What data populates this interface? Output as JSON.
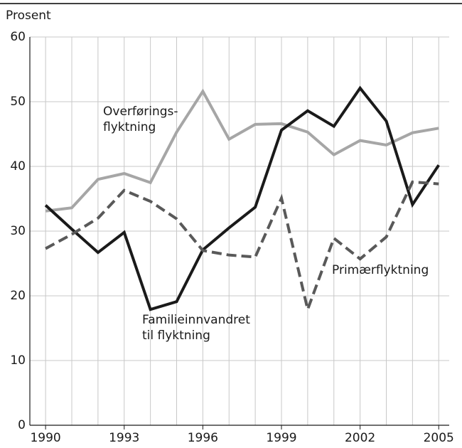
{
  "chart_data": {
    "type": "line",
    "y_label": "Prosent",
    "x": [
      1990,
      1991,
      1992,
      1993,
      1994,
      1995,
      1996,
      1997,
      1998,
      1999,
      2000,
      2001,
      2002,
      2003,
      2004,
      2005
    ],
    "series": [
      {
        "name": [
          "Overførings-",
          "flyktning"
        ],
        "color": "#a6a6a6",
        "dashed": false,
        "values": [
          33.1,
          33.6,
          38.0,
          38.9,
          37.5,
          45.3,
          51.6,
          44.2,
          46.5,
          46.6,
          45.3,
          41.8,
          44.0,
          43.3,
          45.2,
          45.9
        ]
      },
      {
        "name": [
          "Familieinnvandret",
          "til flyktning"
        ],
        "color": "#1a1a1a",
        "dashed": false,
        "values": [
          34.0,
          30.3,
          26.7,
          29.8,
          17.9,
          19.1,
          27.1,
          30.5,
          33.7,
          45.6,
          48.6,
          46.2,
          52.1,
          47.0,
          34.1,
          40.2
        ]
      },
      {
        "name": [
          "Primærflyktning"
        ],
        "color": "#595959",
        "dashed": true,
        "values": [
          27.3,
          29.5,
          32.0,
          36.3,
          34.6,
          31.9,
          27.0,
          26.3,
          26.0,
          35.1,
          17.9,
          28.9,
          25.7,
          29.1,
          37.6,
          37.3
        ]
      }
    ],
    "xlim": [
      1989.4,
      2005.4
    ],
    "xticks": [
      1990,
      1993,
      1996,
      1999,
      2002,
      2005
    ],
    "ylim": [
      0,
      60
    ],
    "yticks": [
      0,
      10,
      20,
      30,
      40,
      50,
      60
    ],
    "grid": true
  }
}
